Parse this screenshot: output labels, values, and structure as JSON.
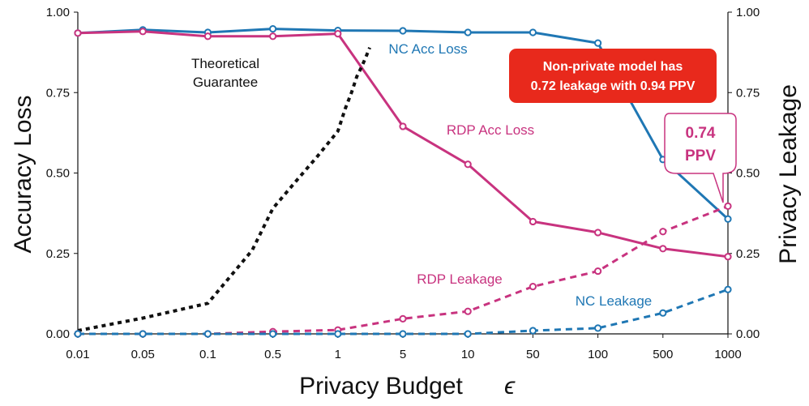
{
  "chart_data": {
    "type": "line",
    "xlabel": "Privacy Budget",
    "xsymbol": "ϵ",
    "ylabel_left": "Accuracy Loss",
    "ylabel_right": "Privacy Leakage",
    "x_categories": [
      "0.01",
      "0.05",
      "0.1",
      "0.5",
      "1",
      "5",
      "10",
      "50",
      "100",
      "500",
      "1000"
    ],
    "ylim_left": [
      0,
      1
    ],
    "ylim_right": [
      0,
      1
    ],
    "yticks_left": [
      "0.00",
      "0.25",
      "0.50",
      "0.75",
      "1.00"
    ],
    "yticks_right": [
      "0.00",
      "0.25",
      "0.50",
      "0.75",
      "1.00"
    ],
    "grid": false,
    "colors": {
      "nc": "#1f77b4",
      "rdp": "#c8337f",
      "theory": "#111111",
      "callout": "#e8291c"
    },
    "series": [
      {
        "name": "NC Acc Loss",
        "style": "solid",
        "color": "#1f77b4",
        "values": [
          0.935,
          0.945,
          0.937,
          0.948,
          0.943,
          0.942,
          0.937,
          0.937,
          0.904,
          0.542,
          0.357
        ]
      },
      {
        "name": "RDP Acc Loss",
        "style": "solid",
        "color": "#c8337f",
        "values": [
          0.935,
          0.94,
          0.925,
          0.925,
          0.933,
          0.645,
          0.527,
          0.349,
          0.315,
          0.265,
          0.24
        ]
      },
      {
        "name": "RDP Leakage",
        "style": "dashed",
        "color": "#c8337f",
        "values": [
          0.0,
          0.0,
          0.0,
          0.007,
          0.012,
          0.047,
          0.07,
          0.147,
          0.195,
          0.318,
          0.397
        ]
      },
      {
        "name": "NC Leakage",
        "style": "dashed",
        "color": "#1f77b4",
        "values": [
          0.0,
          0.0,
          0.0,
          0.0,
          0.0,
          0.0,
          0.0,
          0.01,
          0.018,
          0.065,
          0.138
        ]
      },
      {
        "name": "Theoretical Guarantee",
        "style": "dotted",
        "color": "#111111",
        "x": [
          0.01,
          0.05,
          0.1,
          0.3,
          0.5,
          0.65,
          0.8,
          1.0,
          1.2,
          1.4,
          1.6,
          1.8,
          2.0,
          2.2
        ],
        "values": [
          0.01,
          0.049,
          0.095,
          0.26,
          0.39,
          0.48,
          0.55,
          0.63,
          0.7,
          0.75,
          0.8,
          0.83,
          0.86,
          0.89
        ]
      }
    ],
    "annotations": {
      "theory_line1": "Theoretical",
      "theory_line2": "Guarantee",
      "nc_acc": "NC Acc Loss",
      "rdp_acc": "RDP Acc Loss",
      "rdp_leak": "RDP Leakage",
      "nc_leak": "NC Leakage",
      "callout_line1": "Non-private model has",
      "callout_line2": "0.72 leakage with 0.94 PPV",
      "bubble_line1": "0.74",
      "bubble_line2": "PPV"
    }
  }
}
